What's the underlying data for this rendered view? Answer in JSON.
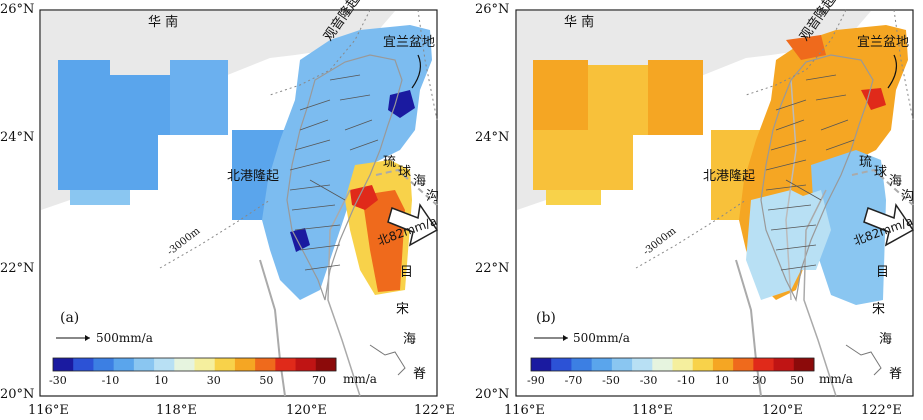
{
  "axes": {
    "lat_labels": [
      "26°N",
      "24°N",
      "22°N",
      "20°N"
    ],
    "lon_labels": [
      "116°E",
      "118°E",
      "120°E",
      "122°E"
    ]
  },
  "panels": [
    {
      "id": "a",
      "panel_label": "(a)",
      "scale_label": "500mm/a",
      "unit": "mm/a",
      "ticks": [
        "-30",
        "-10",
        "10",
        "30",
        "50",
        "70"
      ],
      "annotations": {
        "huanan": "华 南",
        "guanyin": "观音隆起",
        "yilan": "宜兰盆地",
        "beigang": "北港隆起",
        "liuqiu": [
          "琉",
          "球",
          "海",
          "沟"
        ],
        "arrow_label": "北82mm/a",
        "mu": "目",
        "song": "宋",
        "hai": "海",
        "ji": "脊",
        "contour": "-3000m"
      },
      "colors": [
        "#1a1aa0",
        "#2c52d6",
        "#3c7fe3",
        "#5aa5ec",
        "#8ac6f1",
        "#b8e0f4",
        "#e6f4df",
        "#f5ef9e",
        "#f8d24a",
        "#f5a623",
        "#ef6a1c",
        "#e02a1a",
        "#c01414",
        "#8c0a0a"
      ]
    },
    {
      "id": "b",
      "panel_label": "(b)",
      "scale_label": "500mm/a",
      "unit": "mm/a",
      "ticks": [
        "-90",
        "-70",
        "-50",
        "-30",
        "-10",
        "10",
        "30",
        "50"
      ],
      "annotations": {
        "huanan": "华 南",
        "guanyin": "观音隆起",
        "yilan": "宜兰盆地",
        "beigang": "北港隆起",
        "liuqiu": [
          "琉",
          "球",
          "海",
          "沟"
        ],
        "arrow_label": "北82mm/a",
        "mu": "目",
        "song": "宋",
        "hai": "海",
        "ji": "脊",
        "contour": "-3000m"
      },
      "colors": [
        "#1a1aa0",
        "#2c52d6",
        "#3c7fe3",
        "#5aa5ec",
        "#8ac6f1",
        "#b8e0f4",
        "#e6f4df",
        "#f5ef9e",
        "#f8d24a",
        "#f5a623",
        "#ef6a1c",
        "#e02a1a",
        "#c01414",
        "#8c0a0a"
      ]
    }
  ]
}
